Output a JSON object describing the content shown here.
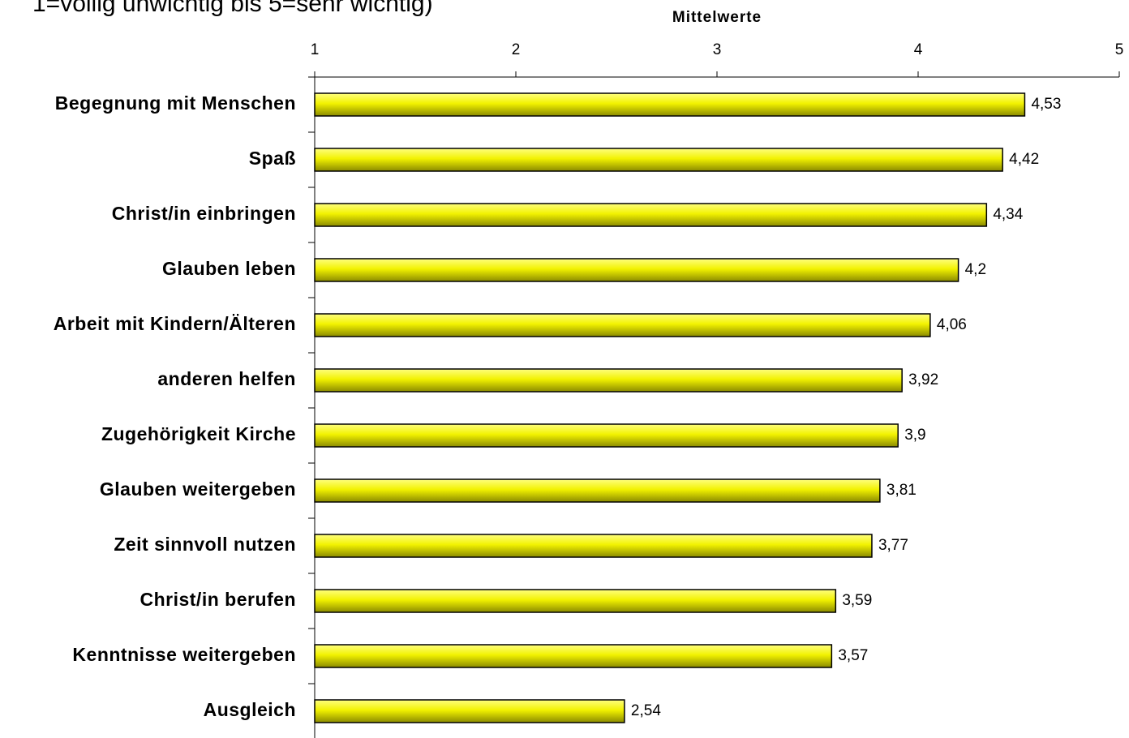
{
  "chart_data": {
    "type": "bar",
    "orientation": "horizontal",
    "subtitle": "1=völlig unwichtig bis 5=sehr wichtig)",
    "x_axis_label": "Mittelwerte",
    "categories": [
      "Begegnung mit Menschen",
      "Spaß",
      "Christ/in einbringen",
      "Glauben leben",
      "Arbeit mit Kindern/Älteren",
      "anderen helfen",
      "Zugehörigkeit Kirche",
      "Glauben weitergeben",
      "Zeit sinnvoll nutzen",
      "Christ/in berufen",
      "Kenntnisse weitergeben",
      "Ausgleich"
    ],
    "values": [
      4.53,
      4.42,
      4.34,
      4.2,
      4.06,
      3.92,
      3.9,
      3.81,
      3.77,
      3.59,
      3.57,
      2.54
    ],
    "value_labels": [
      "4,53",
      "4,42",
      "4,34",
      "4,2",
      "4,06",
      "3,92",
      "3,9",
      "3,81",
      "3,77",
      "3,59",
      "3,57",
      "2,54"
    ],
    "color": "#ffff00",
    "xlim": [
      1,
      5
    ],
    "xticks": [
      1,
      2,
      3,
      4,
      5
    ]
  }
}
